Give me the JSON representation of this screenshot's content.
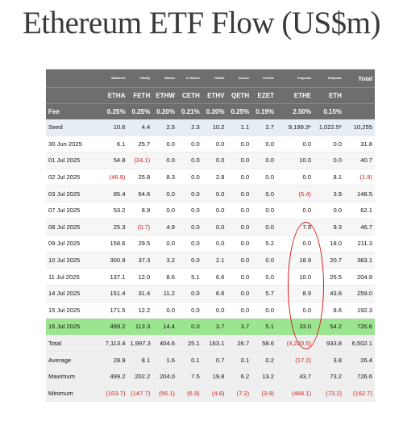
{
  "title": "Ethereum ETF Flow (US$m)",
  "chart_data": {
    "type": "table",
    "issuers": [
      "",
      "Blackrock",
      "Fidelity",
      "Bitwise",
      "21 Shares",
      "VanEck",
      "Invesco",
      "Franklin",
      "Grayscale",
      "Grayscale",
      "Total"
    ],
    "tickers": [
      "",
      "ETHA",
      "FETH",
      "ETHW",
      "CETH",
      "ETHV",
      "QETH",
      "EZET",
      "ETHE",
      "ETH",
      ""
    ],
    "fees": [
      "Fee",
      "0.25%",
      "0.25%",
      "0.20%",
      "0.21%",
      "0.20%",
      "0.25%",
      "0.19%",
      "2.50%",
      "0.15%",
      ""
    ],
    "rows": [
      {
        "style": "seed",
        "cells": [
          "Seed",
          "10.6",
          "4.4",
          "2.5",
          "2.3",
          "10.2",
          "1.1",
          "2.7",
          "9,199.3*",
          "1,022.5*",
          "10,255"
        ]
      },
      {
        "style": "",
        "cells": [
          "30 Jun 2025",
          "6.1",
          "25.7",
          "0.0",
          "0.0",
          "0.0",
          "0.0",
          "0.0",
          "0.0",
          "0.0",
          "31.8"
        ]
      },
      {
        "style": "alt",
        "cells": [
          "01 Jul 2025",
          "54.8",
          "(24.1)",
          "0.0",
          "0.0",
          "0.0",
          "0.0",
          "0.0",
          "10.0",
          "0.0",
          "40.7"
        ]
      },
      {
        "style": "",
        "cells": [
          "02 Jul 2025",
          "(46.9)",
          "25.8",
          "8.3",
          "0.0",
          "2.8",
          "0.0",
          "0.0",
          "0.0",
          "8.1",
          "(1.9)"
        ]
      },
      {
        "style": "alt",
        "cells": [
          "03 Jul 2025",
          "85.4",
          "64.6",
          "0.0",
          "0.0",
          "0.0",
          "0.0",
          "0.0",
          "(5.4)",
          "3.9",
          "148.5"
        ]
      },
      {
        "style": "",
        "cells": [
          "07 Jul 2025",
          "53.2",
          "8.9",
          "0.0",
          "0.0",
          "0.0",
          "0.0",
          "0.0",
          "0.0",
          "0.0",
          "62.1"
        ]
      },
      {
        "style": "alt",
        "cells": [
          "08 Jul 2025",
          "25.3",
          "(0.7)",
          "4.9",
          "0.0",
          "0.0",
          "0.0",
          "0.0",
          "7.9",
          "9.3",
          "46.7"
        ]
      },
      {
        "style": "",
        "cells": [
          "09 Jul 2025",
          "158.6",
          "29.5",
          "0.0",
          "0.0",
          "0.0",
          "0.0",
          "5.2",
          "0.0",
          "18.0",
          "211.3"
        ]
      },
      {
        "style": "alt",
        "cells": [
          "10 Jul 2025",
          "300.9",
          "37.3",
          "3.2",
          "0.0",
          "2.1",
          "0.0",
          "0.0",
          "18.9",
          "20.7",
          "383.1"
        ]
      },
      {
        "style": "",
        "cells": [
          "11 Jul 2025",
          "137.1",
          "12.0",
          "8.6",
          "5.1",
          "6.6",
          "0.0",
          "0.0",
          "10.0",
          "25.5",
          "204.9"
        ]
      },
      {
        "style": "alt",
        "cells": [
          "14 Jul 2025",
          "151.4",
          "31.4",
          "11.2",
          "0.0",
          "6.6",
          "0.0",
          "5.7",
          "8.9",
          "43.8",
          "259.0"
        ]
      },
      {
        "style": "",
        "cells": [
          "15 Jul 2025",
          "171.5",
          "12.2",
          "0.0",
          "0.0",
          "0.0",
          "0.0",
          "0.0",
          "0.0",
          "8.6",
          "192.3"
        ]
      },
      {
        "style": "hl",
        "cells": [
          "16 Jul 2025",
          "499.2",
          "113.3",
          "14.4",
          "0.0",
          "3.7",
          "3.7",
          "5.1",
          "33.0",
          "54.2",
          "726.6"
        ]
      },
      {
        "style": "sum",
        "cells": [
          "Total",
          "7,113.4",
          "1,997.3",
          "404.6",
          "25.1",
          "163.1",
          "26.7",
          "58.6",
          "(4,220.5)",
          "933.8",
          "6,502.1"
        ]
      },
      {
        "style": "sumb",
        "cells": [
          "Average",
          "28.9",
          "8.1",
          "1.6",
          "0.1",
          "0.7",
          "0.1",
          "0.2",
          "(17.2)",
          "3.8",
          "26.4"
        ]
      },
      {
        "style": "sumb",
        "cells": [
          "Maximum",
          "499.2",
          "202.2",
          "204.0",
          "7.5",
          "19.8",
          "6.2",
          "13.2",
          "43.7",
          "73.2",
          "726.6"
        ]
      },
      {
        "style": "sumb",
        "cells": [
          "Minimum",
          "(103.7)",
          "(147.7)",
          "(56.1)",
          "(6.9)",
          "(4.8)",
          "(7.2)",
          "(3.9)",
          "(484.1)",
          "(73.2)",
          "(162.7)"
        ]
      }
    ]
  },
  "colors": {
    "header_bg": "#6e6e6e",
    "highlight_row": "#9be58e",
    "negative_text": "#cc2020",
    "annotation_circle": "#d81818"
  }
}
